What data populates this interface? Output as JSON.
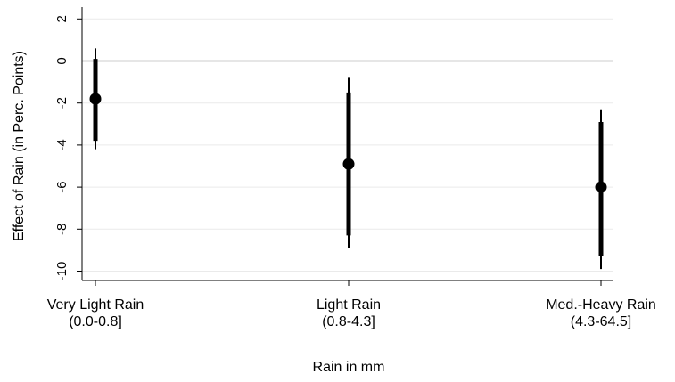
{
  "chart_data": {
    "type": "scatter",
    "title": "",
    "xlabel": "Rain in mm",
    "ylabel": "Effect of Rain (in Perc. Points)",
    "ylim": [
      -10.5,
      2.5
    ],
    "yticks": [
      2,
      0,
      -2,
      -4,
      -6,
      -8,
      -10
    ],
    "ytick_labels": [
      "2",
      "0",
      "-2",
      "-4",
      "-6",
      "-8",
      "-10"
    ],
    "grid": true,
    "reference_line": 0,
    "categories": [
      {
        "line1": "Very Light Rain",
        "line2": "(0.0-0.8]"
      },
      {
        "line1": "Light Rain",
        "line2": "(0.8-4.3]"
      },
      {
        "line1": "Med.-Heavy Rain",
        "line2": "(4.3-64.5]"
      }
    ],
    "series": [
      {
        "estimates": [
          -1.8,
          -4.9,
          -6.0
        ],
        "ci_inner": [
          [
            -3.8,
            0.1
          ],
          [
            -8.3,
            -1.5
          ],
          [
            -9.3,
            -2.9
          ]
        ],
        "ci_outer": [
          [
            -4.2,
            0.6
          ],
          [
            -8.9,
            -0.8
          ],
          [
            -9.9,
            -2.3
          ]
        ]
      }
    ],
    "colors": {
      "marker": "#000000",
      "grid": "#eaeaea",
      "zero_line": "#9a9a9a",
      "axis": "#000000"
    }
  }
}
